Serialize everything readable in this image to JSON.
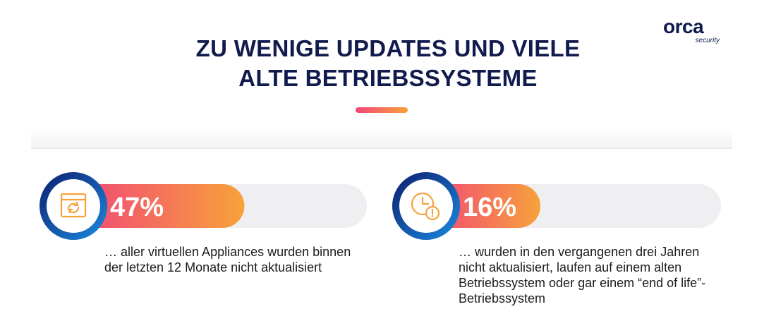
{
  "header": {
    "title_lines": [
      "ZU WENIGE UPDATES UND VIELE",
      "ALTE BETRIEBSSYSTEME"
    ],
    "logo_text": "orca",
    "logo_subtext": "security"
  },
  "chart_data": {
    "type": "bar",
    "categories": [
      "… aller virtuellen Appliances wurden binnen der letzten 12 Monate nicht aktualisiert",
      "… wurden in den vergangenen drei Jahren nicht aktualisiert, laufen auf einem alten Betriebssystem oder gar einem “end of life”-Betriebssystem"
    ],
    "values": [
      47,
      16
    ],
    "labels": [
      "47%",
      "16%"
    ],
    "icons": [
      "refresh-window-icon",
      "clock-alert-icon"
    ],
    "ylim": [
      0,
      100
    ]
  },
  "colors": {
    "title": "#121b4d",
    "bar_gradient_start": "#f2457a",
    "bar_gradient_end": "#f7a23a",
    "ring_outer": "#0d1d6e",
    "ring_inner": "#1a8be0",
    "track": "#efeff2",
    "icon": "#f7a23a"
  }
}
